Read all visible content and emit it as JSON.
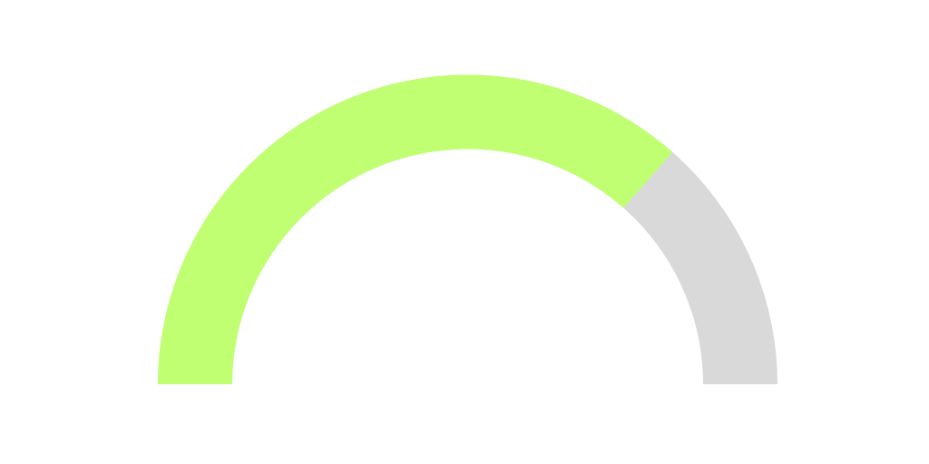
{
  "chart_data": {
    "type": "gauge",
    "value": 73,
    "range": [
      0,
      100
    ],
    "color": "#c1ff72",
    "track_color": "#d9d9d9"
  }
}
